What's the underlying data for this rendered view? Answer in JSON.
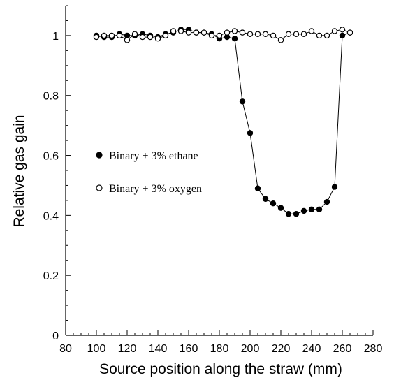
{
  "chart_data": {
    "type": "scatter",
    "xlabel": "Source position along the straw (mm)",
    "ylabel": "Relative gas gain",
    "xlim": [
      80,
      280
    ],
    "ylim": [
      0,
      1.1
    ],
    "x_ticks": [
      "80",
      "100",
      "120",
      "140",
      "160",
      "180",
      "200",
      "220",
      "240",
      "260",
      "280"
    ],
    "y_ticks": [
      "0",
      "0.2",
      "0.4",
      "0.6",
      "0.8",
      "1"
    ],
    "legend_position": "middle-left",
    "series": [
      {
        "name": "Binary + 3% ethane",
        "marker": "filled-circle",
        "x": [
          100,
          105,
          110,
          115,
          120,
          125,
          130,
          135,
          140,
          145,
          150,
          155,
          160,
          165,
          170,
          175,
          180,
          185,
          190,
          195,
          200,
          205,
          210,
          215,
          220,
          225,
          230,
          235,
          240,
          245,
          250,
          255,
          260,
          265
        ],
        "y": [
          1.0,
          0.995,
          0.995,
          1.005,
          1.0,
          1.0,
          1.005,
          1.0,
          0.995,
          1.005,
          1.01,
          1.02,
          1.02,
          1.01,
          1.01,
          1.005,
          0.99,
          0.995,
          0.99,
          0.78,
          0.675,
          0.49,
          0.455,
          0.44,
          0.425,
          0.405,
          0.405,
          0.415,
          0.42,
          0.42,
          0.445,
          0.495,
          1.0,
          1.01
        ]
      },
      {
        "name": "Binary + 3% oxygen",
        "marker": "open-circle",
        "x": [
          100,
          105,
          110,
          115,
          120,
          125,
          130,
          135,
          140,
          145,
          150,
          155,
          160,
          165,
          170,
          175,
          180,
          185,
          190,
          195,
          200,
          205,
          210,
          215,
          220,
          225,
          230,
          235,
          240,
          245,
          250,
          255,
          260,
          265
        ],
        "y": [
          0.995,
          1.0,
          1.0,
          1.0,
          0.985,
          1.005,
          0.995,
          0.995,
          0.99,
          1.0,
          1.015,
          1.015,
          1.01,
          1.01,
          1.01,
          1.0,
          1.0,
          1.01,
          1.015,
          1.01,
          1.005,
          1.005,
          1.005,
          1.0,
          0.985,
          1.005,
          1.005,
          1.005,
          1.015,
          1.0,
          1.0,
          1.015,
          1.02,
          1.01
        ]
      }
    ]
  },
  "colors": {
    "axis": "#000000",
    "marker": "#000000",
    "background": "#ffffff"
  }
}
